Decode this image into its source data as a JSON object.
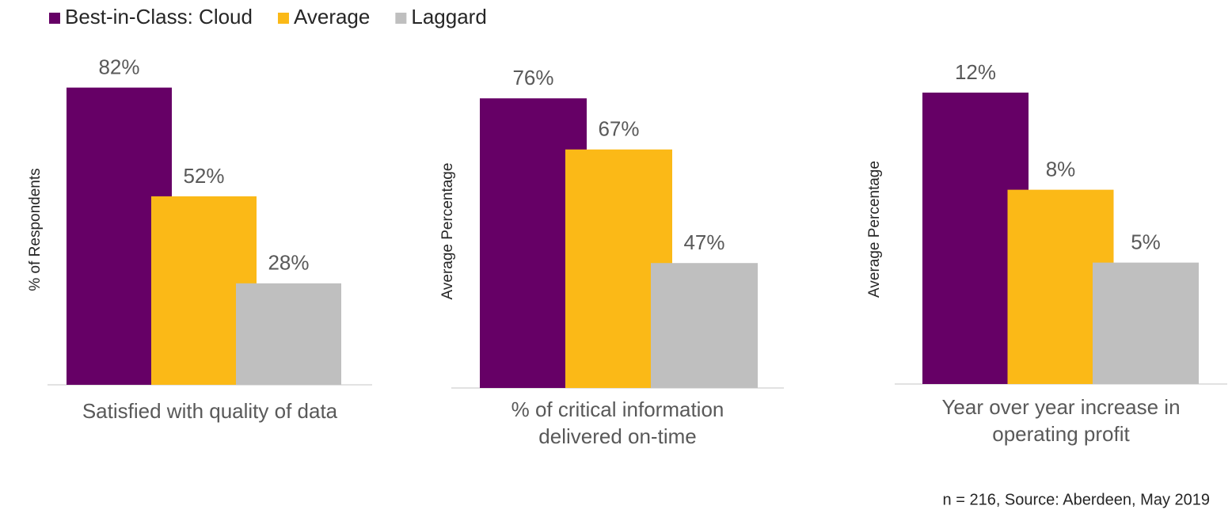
{
  "legend": [
    {
      "name": "Best-in-Class: Cloud",
      "color": "#660066"
    },
    {
      "name": "Average",
      "color": "#fbb917"
    },
    {
      "name": "Laggard",
      "color": "#bfbfbf"
    }
  ],
  "chart_data": [
    {
      "type": "bar",
      "y_label": "% of Respondents",
      "category": "Satisfied with quality of data",
      "values": [
        82,
        52,
        28
      ],
      "value_labels": [
        "82%",
        "52%",
        "28%"
      ],
      "ylim": [
        0,
        90
      ]
    },
    {
      "type": "bar",
      "y_label": "Average Percentage",
      "category": "% of critical information delivered on-time",
      "values": [
        76,
        67,
        47
      ],
      "value_labels": [
        "76%",
        "67%",
        "47%"
      ],
      "ylim": [
        25,
        83
      ]
    },
    {
      "type": "bar",
      "y_label": "Average Percentage",
      "category": "Year over year increase in operating profit",
      "values": [
        12,
        8,
        5
      ],
      "value_labels": [
        "12%",
        "8%",
        "5%"
      ],
      "ylim": [
        0,
        13.4
      ]
    }
  ],
  "footnote": "n = 216, Source: Aberdeen,  May 2019"
}
